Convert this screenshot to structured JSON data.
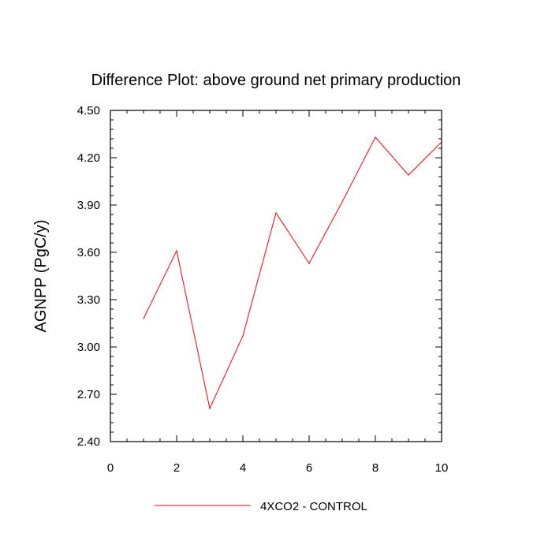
{
  "chart_data": {
    "type": "line",
    "title": "Difference Plot: above ground net primary production",
    "xlabel": "",
    "ylabel": "AGNPP  (PgC/y)",
    "xlim": [
      0,
      10
    ],
    "ylim": [
      2.4,
      4.5
    ],
    "x_ticks": [
      0,
      2,
      4,
      6,
      8,
      10
    ],
    "x_tick_labels": [
      "0",
      "2",
      "4",
      "6",
      "8",
      "10"
    ],
    "y_ticks": [
      2.4,
      2.7,
      3.0,
      3.3,
      3.6,
      3.9,
      4.2,
      4.5
    ],
    "y_tick_labels": [
      "2.40",
      "2.70",
      "3.00",
      "3.30",
      "3.60",
      "3.90",
      "4.20",
      "4.50"
    ],
    "x_minor_step": 0.5,
    "y_minor_step": 0.06,
    "grid": false,
    "legend_position": "bottom",
    "series": [
      {
        "name": "4XCO2 - CONTROL",
        "color": "#ff0000",
        "x": [
          1,
          2,
          3,
          4,
          5,
          6,
          7,
          8,
          9,
          10
        ],
        "values": [
          3.18,
          3.61,
          2.61,
          3.07,
          3.85,
          3.53,
          3.92,
          4.33,
          4.09,
          4.3
        ]
      }
    ]
  }
}
